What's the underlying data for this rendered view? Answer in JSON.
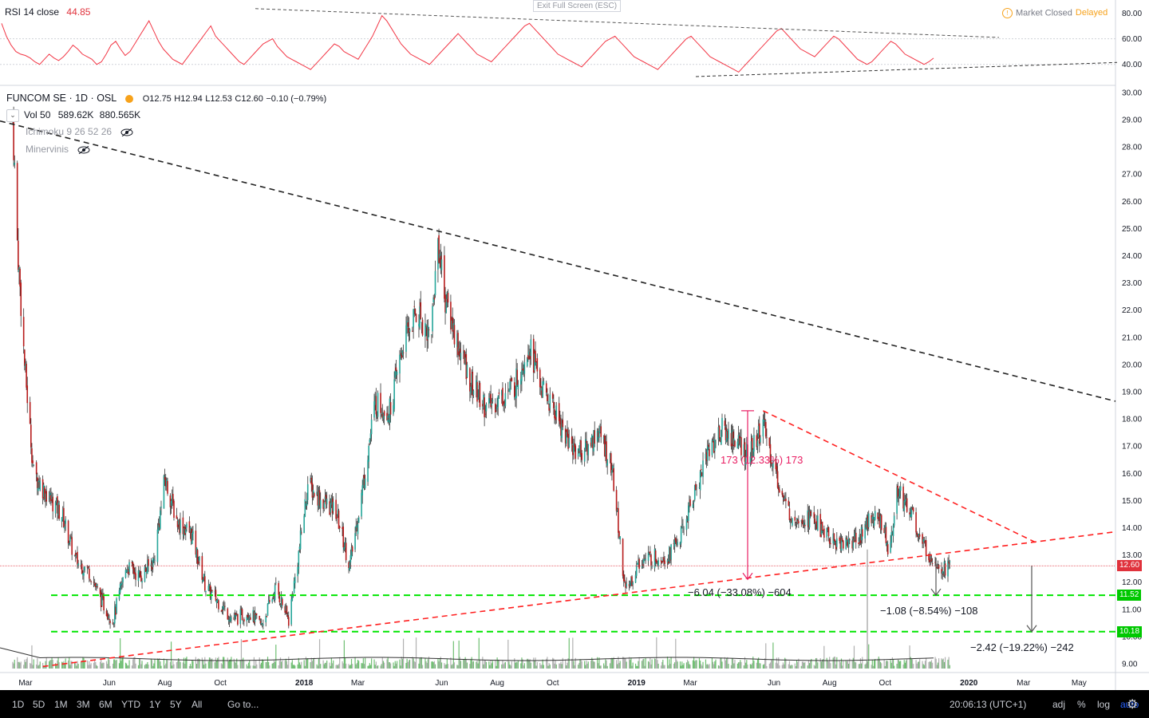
{
  "window": {
    "exit_full_screen": "Exit Full Screen (ESC)"
  },
  "market_status": {
    "label": "Market Closed",
    "delay": "Delayed",
    "icon": "info-icon"
  },
  "rsi_legend": {
    "name": "RSI 14 close",
    "value": "44.85"
  },
  "main_legend": {
    "symbol": "FUNCOM SE · 1D · OSL",
    "open": "O12.75",
    "high": "H12.94",
    "low": "L12.53",
    "close": "C12.60",
    "change": "−0.10 (−0.79%)"
  },
  "studies": {
    "vol": {
      "name": "Vol 50",
      "v1": "589.62K",
      "v2": "880.565K"
    },
    "ichimoku": {
      "name": "Ichimoku 9 26 52 26"
    },
    "minervinis": {
      "name": "Minervinis"
    }
  },
  "bottom_bar": {
    "timeframes": [
      "1D",
      "5D",
      "1M",
      "3M",
      "6M",
      "YTD",
      "1Y",
      "5Y",
      "All"
    ],
    "goto": "Go to...",
    "clock": "20:06:13 (UTC+1)",
    "tools": [
      "adj",
      "%",
      "log",
      "auto"
    ]
  },
  "annotations": {
    "pink_measure": "173 (12.33%) 173",
    "meas1": "−6.04 (−33.08%) −604",
    "meas2": "−1.08 (−8.54%) −108",
    "meas3": "−2.42 (−19.22%) −242"
  },
  "price_tags": [
    {
      "text": "12.60",
      "color": "#e0323c",
      "value": 12.6
    },
    {
      "text": "11.52",
      "color": "#00c800",
      "value": 11.52
    },
    {
      "text": "10.18",
      "color": "#00c800",
      "value": 10.18
    }
  ],
  "colors": {
    "up": "#26a69a",
    "down": "#b71c1c",
    "rsi": "#f23645",
    "green_line": "#00e600",
    "red_dash": "#ff2020"
  },
  "chart_data": [
    {
      "type": "line",
      "title": "RSI 14 close",
      "y_axis_ticks": [
        "80.00",
        "60.00",
        "40.00"
      ],
      "ylim": [
        28,
        84
      ],
      "series": [
        {
          "name": "RSI 14 close",
          "last": 44.85
        }
      ],
      "rsi_values": [
        72,
        62,
        55,
        50,
        48,
        47,
        45,
        42,
        40,
        44,
        48,
        45,
        43,
        46,
        50,
        55,
        52,
        48,
        46,
        44,
        40,
        42,
        48,
        55,
        58,
        52,
        47,
        50,
        56,
        62,
        68,
        74,
        66,
        58,
        52,
        48,
        44,
        42,
        40,
        45,
        50,
        55,
        60,
        65,
        70,
        62,
        58,
        54,
        50,
        46,
        42,
        40,
        44,
        48,
        52,
        56,
        58,
        60,
        54,
        50,
        46,
        44,
        42,
        40,
        38,
        36,
        40,
        44,
        48,
        52,
        56,
        54,
        50,
        48,
        46,
        44,
        50,
        56,
        62,
        70,
        78,
        74,
        68,
        62,
        56,
        52,
        48,
        46,
        44,
        42,
        40,
        44,
        48,
        52,
        56,
        60,
        64,
        60,
        56,
        52,
        48,
        46,
        44,
        42,
        46,
        50,
        54,
        58,
        62,
        66,
        70,
        72,
        68,
        64,
        60,
        56,
        52,
        48,
        46,
        44,
        42,
        40,
        38,
        42,
        46,
        50,
        54,
        58,
        60,
        62,
        58,
        54,
        50,
        46,
        44,
        42,
        40,
        38,
        36,
        40,
        44,
        48,
        52,
        56,
        60,
        62,
        58,
        54,
        50,
        46,
        44,
        42,
        40,
        38,
        36,
        34,
        38,
        42,
        46,
        50,
        54,
        58,
        62,
        66,
        68,
        64,
        60,
        56,
        52,
        50,
        48,
        46,
        50,
        54,
        58,
        62,
        60,
        56,
        52,
        48,
        44,
        42,
        40,
        42,
        46,
        50,
        54,
        58,
        56,
        52,
        48,
        46,
        44,
        42,
        40,
        42,
        44.85
      ]
    },
    {
      "type": "candlestick",
      "title": "FUNCOM SE · 1D · OSL",
      "y_axis_ticks": [
        "30.00",
        "29.00",
        "28.00",
        "27.00",
        "26.00",
        "25.00",
        "24.00",
        "23.00",
        "22.00",
        "21.00",
        "20.00",
        "19.00",
        "18.00",
        "17.00",
        "16.00",
        "15.00",
        "14.00",
        "13.00",
        "12.00",
        "11.00",
        "10.00",
        "9.00"
      ],
      "x_axis_ticks": [
        "Mar",
        "Jun",
        "Aug",
        "Oct",
        "2018",
        "Mar",
        "Jun",
        "Aug",
        "Oct",
        "2019",
        "Mar",
        "Jun",
        "Aug",
        "Oct",
        "2020",
        "Mar",
        "May"
      ],
      "ylim": [
        8.7,
        30.3
      ],
      "close_path": [
        [
          "2017-02-15",
          29.0
        ],
        [
          "2017-02-20",
          24.5
        ],
        [
          "2017-02-28",
          20.0
        ],
        [
          "2017-03-10",
          16.0
        ],
        [
          "2017-03-25",
          15.2
        ],
        [
          "2017-04-10",
          14.5
        ],
        [
          "2017-04-25",
          12.8
        ],
        [
          "2017-05-10",
          12.4
        ],
        [
          "2017-05-25",
          11.2
        ],
        [
          "2017-06-05",
          10.6
        ],
        [
          "2017-06-20",
          12.6
        ],
        [
          "2017-07-05",
          12.2
        ],
        [
          "2017-07-20",
          12.8
        ],
        [
          "2017-08-01",
          15.8
        ],
        [
          "2017-08-15",
          14.2
        ],
        [
          "2017-08-30",
          13.8
        ],
        [
          "2017-09-15",
          11.8
        ],
        [
          "2017-10-01",
          11.2
        ],
        [
          "2017-10-15",
          10.6
        ],
        [
          "2017-11-01",
          10.9
        ],
        [
          "2017-11-15",
          10.4
        ],
        [
          "2017-12-01",
          11.8
        ],
        [
          "2017-12-15",
          10.6
        ],
        [
          "2017-12-25",
          12.8
        ],
        [
          "2018-01-05",
          15.6
        ],
        [
          "2018-01-20",
          15.0
        ],
        [
          "2018-02-05",
          14.6
        ],
        [
          "2018-02-20",
          12.6
        ],
        [
          "2018-03-05",
          15.2
        ],
        [
          "2018-03-20",
          18.6
        ],
        [
          "2018-04-05",
          18.3
        ],
        [
          "2018-04-20",
          20.8
        ],
        [
          "2018-05-05",
          22.0
        ],
        [
          "2018-05-20",
          21.0
        ],
        [
          "2018-05-28",
          24.6
        ],
        [
          "2018-06-05",
          22.4
        ],
        [
          "2018-06-20",
          20.6
        ],
        [
          "2018-07-05",
          19.2
        ],
        [
          "2018-07-20",
          18.4
        ],
        [
          "2018-08-05",
          18.8
        ],
        [
          "2018-08-20",
          19.2
        ],
        [
          "2018-09-05",
          20.8
        ],
        [
          "2018-09-20",
          19.0
        ],
        [
          "2018-10-05",
          18.2
        ],
        [
          "2018-10-20",
          17.0
        ],
        [
          "2018-11-05",
          16.8
        ],
        [
          "2018-11-20",
          17.6
        ],
        [
          "2018-12-05",
          16.2
        ],
        [
          "2018-12-20",
          11.6
        ],
        [
          "2019-01-05",
          12.8
        ],
        [
          "2019-01-20",
          12.9
        ],
        [
          "2019-02-05",
          13.0
        ],
        [
          "2019-02-20",
          13.8
        ],
        [
          "2019-03-05",
          15.2
        ],
        [
          "2019-03-20",
          16.8
        ],
        [
          "2019-04-05",
          17.6
        ],
        [
          "2019-04-20",
          17.2
        ],
        [
          "2019-05-05",
          16.6
        ],
        [
          "2019-05-20",
          17.8
        ],
        [
          "2019-06-01",
          16.2
        ],
        [
          "2019-06-15",
          14.6
        ],
        [
          "2019-07-01",
          14.4
        ],
        [
          "2019-07-15",
          14.3
        ],
        [
          "2019-08-01",
          13.6
        ],
        [
          "2019-08-15",
          13.4
        ],
        [
          "2019-09-01",
          13.6
        ],
        [
          "2019-09-15",
          14.4
        ],
        [
          "2019-09-28",
          14.2
        ],
        [
          "2019-10-05",
          13.2
        ],
        [
          "2019-10-15",
          15.4
        ],
        [
          "2019-10-30",
          14.6
        ],
        [
          "2019-11-10",
          13.4
        ],
        [
          "2019-11-25",
          12.8
        ],
        [
          "2019-12-05",
          12.5
        ],
        [
          "2019-12-12",
          12.6
        ]
      ],
      "horizontal_levels": [
        11.52,
        10.18
      ],
      "last_price": 12.6
    }
  ]
}
